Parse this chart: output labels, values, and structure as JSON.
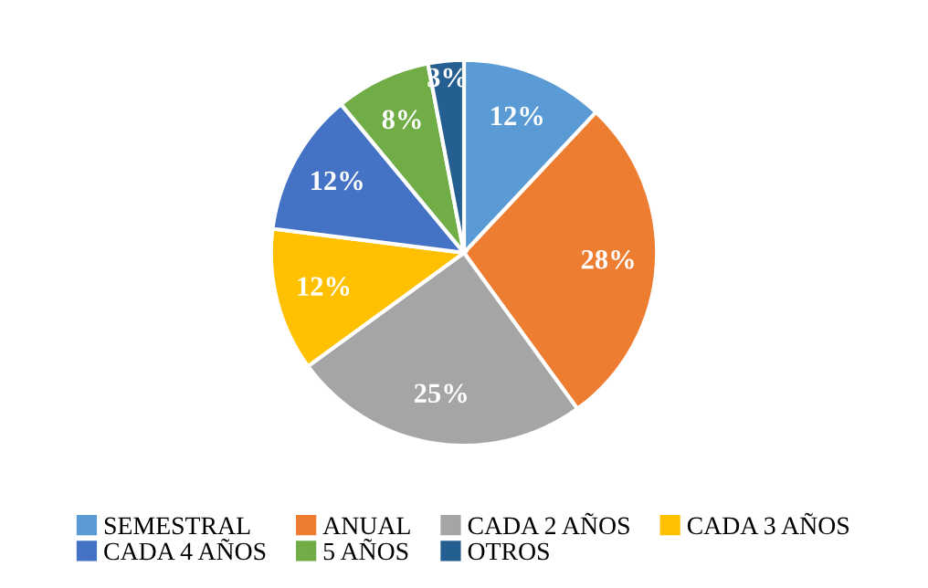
{
  "chart_data": {
    "type": "pie",
    "categories": [
      "SEMESTRAL",
      "ANUAL",
      "CADA 2 AÑOS",
      "CADA 3 AÑOS",
      "CADA 4 AÑOS",
      "5 AÑOS",
      "OTROS"
    ],
    "values": [
      12,
      28,
      25,
      12,
      12,
      8,
      3
    ],
    "colors": [
      "#5b9bd5",
      "#ed7d31",
      "#a5a5a5",
      "#ffc000",
      "#4472c4",
      "#70ad47",
      "#255e91"
    ],
    "value_labels": [
      "12%",
      "28%",
      "25%",
      "12%",
      "12%",
      "8%",
      "3%"
    ],
    "legend": "bottom"
  }
}
